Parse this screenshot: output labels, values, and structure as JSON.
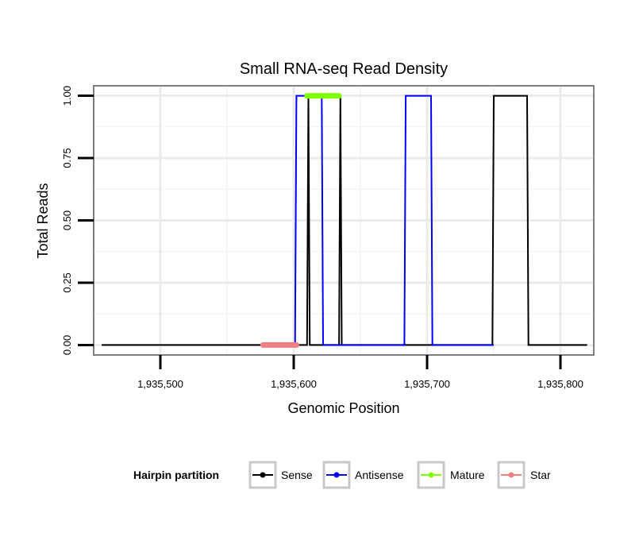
{
  "chart_data": {
    "type": "line",
    "title": "Small RNA-seq Read Density",
    "xlabel": "Genomic Position",
    "ylabel": "Total Reads",
    "xlim": [
      1935450,
      1935825
    ],
    "ylim": [
      -0.04,
      1.04
    ],
    "x_ticks": [
      1935500,
      1935600,
      1935700,
      1935800
    ],
    "x_tick_labels": [
      "1,935,500",
      "1,935,600",
      "1,935,700",
      "1,935,800"
    ],
    "y_ticks": [
      0,
      0.25,
      0.5,
      0.75,
      1
    ],
    "y_tick_labels": [
      "0.00",
      "0.25",
      "0.50",
      "0.75",
      "1.00"
    ],
    "grid": true,
    "legend": {
      "title": "Hairpin partition",
      "position": "bottom",
      "entries": [
        "Sense",
        "Antisense",
        "Mature",
        "Star"
      ]
    },
    "series": [
      {
        "name": "Sense",
        "color": "#000000",
        "points": [
          [
            1935456,
            0
          ],
          [
            1935610,
            0
          ],
          [
            1935611,
            1
          ],
          [
            1935611,
            1
          ],
          [
            1935612,
            0
          ],
          [
            1935634,
            0
          ],
          [
            1935635,
            1
          ],
          [
            1935635,
            1
          ],
          [
            1935636,
            0
          ],
          [
            1935749,
            0
          ],
          [
            1935750,
            1
          ],
          [
            1935775,
            1
          ],
          [
            1935776,
            0
          ],
          [
            1935820,
            0
          ]
        ]
      },
      {
        "name": "Antisense",
        "color": "#0000ff",
        "points": [
          [
            1935601,
            0
          ],
          [
            1935602,
            1
          ],
          [
            1935621,
            1
          ],
          [
            1935622,
            0
          ],
          [
            1935683,
            0
          ],
          [
            1935684,
            1
          ],
          [
            1935703,
            1
          ],
          [
            1935704,
            0
          ],
          [
            1935749,
            0
          ],
          [
            1935750,
            0
          ]
        ]
      },
      {
        "name": "Mature",
        "color": "#7fff00",
        "points": [
          [
            1935610,
            1
          ],
          [
            1935634,
            1
          ]
        ]
      },
      {
        "name": "Star",
        "color": "#f08080",
        "points": [
          [
            1935577,
            0
          ],
          [
            1935602,
            0
          ]
        ]
      }
    ]
  }
}
